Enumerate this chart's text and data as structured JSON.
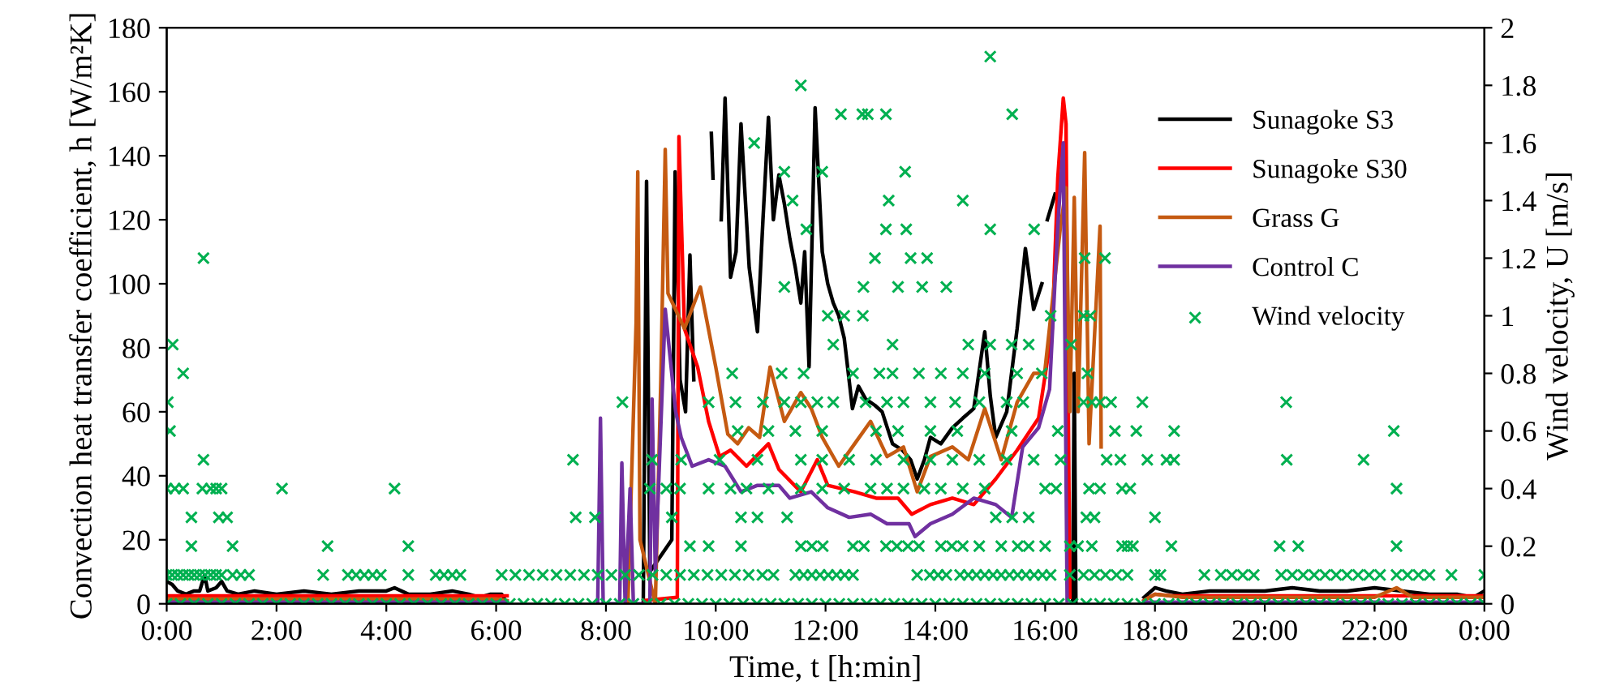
{
  "chart_data": {
    "type": "line",
    "xlabel": "Time, t [h:min]",
    "ylabel": "Convection heat transfer coefficient, h [W/m²K]",
    "y2label": "Wind velocity, U [m/s]",
    "xlim": [
      0,
      24
    ],
    "xticks": [
      {
        "value": 0,
        "label": "0:00"
      },
      {
        "value": 2,
        "label": "2:00"
      },
      {
        "value": 4,
        "label": "4:00"
      },
      {
        "value": 6,
        "label": "6:00"
      },
      {
        "value": 8,
        "label": "8:00"
      },
      {
        "value": 10,
        "label": "10:00"
      },
      {
        "value": 12,
        "label": "12:00"
      },
      {
        "value": 14,
        "label": "14:00"
      },
      {
        "value": 16,
        "label": "16:00"
      },
      {
        "value": 18,
        "label": "18:00"
      },
      {
        "value": 20,
        "label": "20:00"
      },
      {
        "value": 22,
        "label": "22:00"
      },
      {
        "value": 24,
        "label": "0:00"
      }
    ],
    "ylim": [
      0,
      180
    ],
    "yticks": [
      0,
      20,
      40,
      60,
      80,
      100,
      120,
      140,
      160,
      180
    ],
    "y2lim": [
      0,
      2
    ],
    "y2ticks": [
      0,
      0.2,
      0.4,
      0.6,
      0.8,
      1,
      1.2,
      1.4,
      1.6,
      1.8,
      2
    ],
    "legend": "top right",
    "series": [
      {
        "name": "Sunagoke S3",
        "color": "#000000",
        "x": [
          0,
          0.1,
          0.2,
          0.35,
          0.5,
          0.6,
          0.69,
          0.75,
          0.9,
          1.0,
          1.1,
          1.3,
          1.6,
          2.0,
          2.5,
          3.0,
          3.5,
          4.0,
          4.15,
          4.4,
          4.8,
          5.2,
          5.5,
          5.7,
          5.9,
          6.1,
          6.17,
          6.3,
          8.68,
          8.74,
          8.8,
          9.2,
          9.26,
          9.35,
          9.45,
          9.53,
          9.6,
          9.75,
          9.92,
          9.95,
          10.0,
          10.1,
          10.17,
          10.27,
          10.37,
          10.46,
          10.61,
          10.76,
          10.86,
          10.96,
          11.05,
          11.15,
          11.25,
          11.35,
          11.45,
          11.55,
          11.62,
          11.7,
          11.81,
          11.94,
          12.04,
          12.14,
          12.24,
          12.34,
          12.49,
          12.6,
          12.73,
          12.9,
          13.03,
          13.22,
          13.4,
          13.55,
          13.67,
          13.8,
          13.91,
          14.1,
          14.31,
          14.5,
          14.7,
          14.9,
          15.0,
          15.1,
          15.3,
          15.49,
          15.64,
          15.79,
          15.94,
          15.99,
          16.04,
          16.18,
          16.3,
          16.5,
          16.53,
          16.56,
          16.6,
          17.8,
          18.0,
          18.2,
          18.5,
          19.0,
          19.5,
          20.0,
          20.5,
          21.0,
          21.5,
          22.0,
          22.5,
          23.0,
          23.5,
          23.8,
          24
        ],
        "values": [
          7,
          6,
          4,
          3,
          4,
          4,
          9,
          4,
          5,
          7,
          4,
          3,
          4,
          3,
          4,
          3,
          4,
          4,
          5,
          3,
          3,
          4,
          3,
          2,
          3,
          3,
          1,
          null,
          0,
          132,
          10,
          20,
          135,
          70,
          60,
          109,
          70,
          null,
          147,
          133,
          null,
          120,
          158,
          102,
          110,
          150,
          105,
          85,
          120,
          152,
          120,
          134,
          125,
          114,
          105,
          94,
          110,
          74,
          155,
          110,
          100,
          94,
          90,
          83,
          61,
          68,
          64,
          62,
          60,
          50,
          48,
          45,
          39,
          45,
          52,
          50,
          55,
          58,
          61,
          85,
          65,
          52,
          60,
          86,
          111,
          92,
          100,
          null,
          120,
          128,
          null,
          0,
          72,
          0,
          null,
          2,
          5,
          4,
          3,
          4,
          4,
          4,
          5,
          4,
          4,
          5,
          4,
          3,
          3,
          2,
          4
        ]
      },
      {
        "name": "Sunagoke S30",
        "color": "#ff0000",
        "x": [
          0,
          1,
          3,
          6,
          6.2,
          6.3,
          8.7,
          9.3,
          9.33,
          9.43,
          9.55,
          9.67,
          9.87,
          10.07,
          10.27,
          10.56,
          10.96,
          11.15,
          11.55,
          11.85,
          12.04,
          12.53,
          12.92,
          13.32,
          13.57,
          13.91,
          14.31,
          14.7,
          15.1,
          15.49,
          15.88,
          16.13,
          16.23,
          16.33,
          16.38,
          16.45,
          16.5,
          17.8,
          18.0,
          18.3,
          19,
          24
        ],
        "values": [
          2.5,
          2.5,
          2.5,
          2.5,
          2.5,
          null,
          1,
          2,
          146,
          86,
          80,
          74,
          57,
          46,
          48,
          43,
          50,
          42,
          35,
          45,
          37,
          35,
          33,
          33,
          28,
          31,
          33,
          31,
          39,
          48,
          58,
          86,
          133,
          158,
          150,
          2,
          null,
          1,
          3,
          2.5,
          2.5,
          2.5
        ]
      },
      {
        "name": "Grass G",
        "color": "#c55a11",
        "x": [
          0,
          2,
          4,
          6,
          6.2,
          6.3,
          8.4,
          8.55,
          8.58,
          8.62,
          8.9,
          9.0,
          9.08,
          9.13,
          9.43,
          9.72,
          10.0,
          10.22,
          10.4,
          10.6,
          10.8,
          10.99,
          11.25,
          11.55,
          11.74,
          11.94,
          12.24,
          12.53,
          12.82,
          13.12,
          13.42,
          13.67,
          13.91,
          14.31,
          14.6,
          14.9,
          15.2,
          15.49,
          15.79,
          15.99,
          16.28,
          16.38,
          16.45,
          16.53,
          16.6,
          16.72,
          16.8,
          17.0,
          17.02,
          17.1,
          17.8,
          18.0,
          18.5,
          19,
          20,
          21,
          22,
          22.4,
          22.7,
          23,
          24
        ],
        "values": [
          1.5,
          1.5,
          1.5,
          1.5,
          1,
          null,
          0,
          88,
          135,
          20,
          0,
          70,
          142,
          97,
          86,
          99,
          74,
          53,
          50,
          55,
          52,
          74,
          57,
          66,
          61,
          52,
          43,
          50,
          57,
          46,
          49,
          35,
          46,
          49,
          45,
          61,
          45,
          63,
          72,
          72,
          118,
          130,
          60,
          127,
          60,
          141,
          50,
          118,
          49,
          null,
          1,
          3,
          2,
          2,
          2,
          2,
          2,
          5,
          2,
          2,
          2
        ]
      },
      {
        "name": "Control C",
        "color": "#7030a0",
        "x": [
          0,
          3,
          6.2,
          6.3,
          7.85,
          7.9,
          7.95,
          8.25,
          8.29,
          8.35,
          8.44,
          8.5,
          8.8,
          8.84,
          8.9,
          9.08,
          9.27,
          9.37,
          9.57,
          9.87,
          10.17,
          10.46,
          10.76,
          11.15,
          11.35,
          11.74,
          12.04,
          12.43,
          12.82,
          13.12,
          13.52,
          13.63,
          13.91,
          14.31,
          14.7,
          15.1,
          15.39,
          15.59,
          15.88,
          16.08,
          16.23,
          16.33,
          16.4,
          16.5,
          17.8,
          24
        ],
        "values": [
          0.5,
          0.5,
          0.5,
          null,
          0,
          58,
          0,
          0,
          44,
          0,
          36,
          0,
          0,
          64,
          10,
          92,
          60,
          52,
          43,
          45,
          43,
          35,
          37,
          37,
          33,
          35,
          30,
          27,
          28,
          25,
          25,
          21,
          25,
          28,
          33,
          31,
          27,
          49,
          55,
          67,
          118,
          144,
          1,
          null,
          0.5,
          0.5
        ]
      },
      {
        "name": "Wind velocity",
        "color": "#00b050",
        "type": "scatter",
        "marker": "cross",
        "axis": "y2",
        "x": [
          0,
          0.25,
          0.5,
          0.75,
          1,
          1.25,
          1.5,
          1.75,
          2,
          2.25,
          2.5,
          2.75,
          3,
          3.25,
          3.5,
          3.75,
          4,
          4.25,
          4.5,
          4.75,
          5,
          5.25,
          5.5,
          5.75,
          6,
          6.25,
          6.5,
          6.75,
          7,
          7.25,
          7.5,
          7.75,
          8,
          8.25,
          8.5,
          8.75,
          9,
          9.25,
          9.5,
          9.75,
          10,
          10.25,
          10.5,
          10.75,
          11,
          11.25,
          11.5,
          11.75,
          12,
          12.25,
          12.5,
          12.75,
          13,
          13.25,
          13.5,
          13.75,
          14,
          14.25,
          14.5,
          14.75,
          15,
          15.25,
          15.5,
          15.75,
          16,
          16.25,
          16.5,
          16.75,
          17,
          17.25,
          17.5,
          17.75,
          18,
          18.25,
          18.5,
          18.75,
          19,
          19.25,
          19.5,
          19.75,
          20,
          20.25,
          20.5,
          20.75,
          21,
          21.25,
          21.5,
          21.75,
          22,
          22.25,
          22.5,
          22.75,
          23,
          23.25,
          23.5,
          23.75,
          24,
          0,
          0.1,
          0.2,
          0.3,
          0.4,
          0.5,
          0.6,
          0.7,
          0.8,
          0.9,
          1.0,
          1.2,
          1.35,
          1.5,
          2.85,
          3.3,
          3.45,
          3.6,
          3.75,
          3.9,
          4.4,
          4.9,
          5.05,
          5.2,
          5.35,
          6.1,
          6.35,
          6.6,
          6.85,
          7.1,
          7.35,
          7.6,
          7.85,
          8.1,
          8.35,
          8.6,
          8.85,
          9.1,
          9.35,
          9.6,
          9.85,
          10.1,
          10.35,
          10.6,
          10.85,
          11.05,
          11.45,
          11.6,
          11.75,
          11.9,
          12.05,
          12.2,
          12.35,
          12.5,
          13.67,
          13.9,
          14.05,
          14.2,
          14.45,
          14.6,
          14.75,
          14.9,
          15.05,
          15.2,
          15.35,
          15.5,
          15.65,
          15.8,
          15.95,
          16.1,
          16.45,
          16.7,
          16.9,
          17.1,
          17.3,
          17.5,
          18.0,
          18.1,
          18.9,
          19.2,
          19.4,
          19.6,
          19.8,
          20.3,
          20.5,
          20.7,
          20.9,
          21.1,
          21.3,
          21.5,
          21.7,
          21.9,
          22.1,
          22.4,
          22.6,
          22.8,
          23.0,
          23.4,
          24.0,
          0.45,
          1.2,
          2.93,
          4.4,
          9.53,
          9.87,
          10.46,
          11.55,
          11.75,
          11.95,
          12.5,
          12.7,
          13.1,
          13.3,
          13.5,
          13.7,
          14.1,
          14.3,
          14.5,
          14.8,
          15.2,
          15.5,
          15.7,
          16.0,
          16.45,
          16.6,
          16.85,
          17.4,
          17.5,
          17.6,
          18.3,
          20.27,
          20.61,
          22.4,
          0.45,
          0.95,
          1.1,
          7.45,
          7.8,
          9.2,
          10.46,
          10.76,
          11.3,
          15.1,
          15.4,
          15.7,
          16.75,
          16.9,
          18.0,
          0.0,
          0.15,
          0.3,
          0.65,
          0.8,
          0.9,
          1.0,
          2.1,
          4.15,
          8.8,
          9.1,
          9.35,
          9.87,
          10.27,
          10.56,
          10.96,
          11.55,
          11.94,
          12.34,
          12.82,
          13.12,
          13.42,
          13.8,
          14.1,
          14.5,
          14.9,
          16.0,
          16.2,
          16.8,
          17.0,
          17.4,
          17.55,
          22.4,
          0.67,
          7.4,
          8.84,
          9.37,
          10.07,
          10.76,
          11.55,
          11.94,
          12.43,
          12.92,
          13.42,
          13.91,
          14.31,
          14.8,
          15.3,
          15.79,
          16.28,
          17.12,
          17.37,
          17.86,
          18.21,
          18.35,
          20.4,
          21.8,
          0.06,
          10.4,
          10.96,
          11.45,
          11.94,
          12.92,
          13.32,
          13.91,
          14.4,
          15.39,
          16.23,
          17.27,
          17.66,
          18.35,
          22.35,
          0.02,
          8.3,
          9.87,
          10.36,
          10.86,
          11.25,
          11.55,
          11.85,
          12.14,
          12.73,
          13.12,
          13.42,
          13.91,
          14.36,
          14.8,
          15.3,
          15.6,
          16.7,
          16.85,
          17.0,
          17.2,
          17.77,
          20.39,
          0.3,
          10.3,
          11.2,
          11.6,
          12.5,
          12.98,
          13.22,
          13.7,
          14.1,
          14.5,
          14.9,
          15.49,
          15.94,
          16.77,
          0.11,
          12.14,
          13.22,
          14.6,
          15.0,
          15.39,
          15.7,
          16.47,
          12.04,
          12.34,
          12.68,
          16.1,
          16.7,
          16.82,
          11.25,
          12.69,
          13.32,
          13.76,
          14.2,
          0.67,
          12.9,
          13.55,
          13.85,
          16.72,
          17.09,
          11.65,
          13.1,
          13.47,
          15.0,
          15.8,
          11.4,
          13.15,
          14.5,
          11.25,
          11.94,
          13.45,
          10.7,
          12.28,
          12.67,
          12.77,
          13.1,
          15.4,
          11.55,
          15.0
        ],
        "values": [
          0,
          0,
          0,
          0,
          0,
          0,
          0,
          0,
          0,
          0,
          0,
          0,
          0,
          0,
          0,
          0,
          0,
          0,
          0,
          0,
          0,
          0,
          0,
          0,
          0,
          0,
          0,
          0,
          0,
          0,
          0,
          0,
          0,
          0,
          0,
          0,
          0,
          0,
          0,
          0,
          0,
          0,
          0,
          0,
          0,
          0,
          0,
          0,
          0,
          0,
          0,
          0,
          0,
          0,
          0,
          0,
          0,
          0,
          0,
          0,
          0,
          0,
          0,
          0,
          0,
          0,
          0,
          0,
          0,
          0,
          0,
          0,
          0,
          0,
          0,
          0,
          0,
          0,
          0,
          0,
          0,
          0,
          0,
          0,
          0,
          0,
          0,
          0,
          0,
          0,
          0,
          0,
          0,
          0,
          0,
          0,
          0,
          0.1,
          0.1,
          0.1,
          0.1,
          0.1,
          0.1,
          0.1,
          0.1,
          0.1,
          0.1,
          0.1,
          0.1,
          0.1,
          0.1,
          0.1,
          0.1,
          0.1,
          0.1,
          0.1,
          0.1,
          0.1,
          0.1,
          0.1,
          0.1,
          0.1,
          0.1,
          0.1,
          0.1,
          0.1,
          0.1,
          0.1,
          0.1,
          0.1,
          0.1,
          0.1,
          0.1,
          0.1,
          0.1,
          0.1,
          0.1,
          0.1,
          0.1,
          0.1,
          0.1,
          0.1,
          0.1,
          0.1,
          0.1,
          0.1,
          0.1,
          0.1,
          0.1,
          0.1,
          0.1,
          0.1,
          0.1,
          0.1,
          0.1,
          0.1,
          0.1,
          0.1,
          0.1,
          0.1,
          0.1,
          0.1,
          0.1,
          0.1,
          0.1,
          0.1,
          0.1,
          0.1,
          0.1,
          0.1,
          0.1,
          0.1,
          0.1,
          0.1,
          0.1,
          0.1,
          0.1,
          0.1,
          0.1,
          0.1,
          0.1,
          0.1,
          0.1,
          0.1,
          0.1,
          0.1,
          0.1,
          0.1,
          0.1,
          0.1,
          0.1,
          0.1,
          0.1,
          0.1,
          0.1,
          0.1,
          0.2,
          0.2,
          0.2,
          0.2,
          0.2,
          0.2,
          0.2,
          0.2,
          0.2,
          0.2,
          0.2,
          0.2,
          0.2,
          0.2,
          0.2,
          0.2,
          0.2,
          0.2,
          0.2,
          0.2,
          0.2,
          0.2,
          0.2,
          0.2,
          0.2,
          0.2,
          0.2,
          0.2,
          0.2,
          0.2,
          0.2,
          0.2,
          0.2,
          0.2,
          0.3,
          0.3,
          0.3,
          0.3,
          0.3,
          0.3,
          0.3,
          0.3,
          0.3,
          0.3,
          0.3,
          0.3,
          0.3,
          0.3,
          0.3,
          0.4,
          0.4,
          0.4,
          0.4,
          0.4,
          0.4,
          0.4,
          0.4,
          0.4,
          0.4,
          0.4,
          0.4,
          0.4,
          0.4,
          0.4,
          0.4,
          0.4,
          0.4,
          0.4,
          0.4,
          0.4,
          0.4,
          0.4,
          0.4,
          0.4,
          0.4,
          0.4,
          0.4,
          0.4,
          0.4,
          0.4,
          0.4,
          0.4,
          0.5,
          0.5,
          0.5,
          0.5,
          0.5,
          0.5,
          0.5,
          0.5,
          0.5,
          0.5,
          0.5,
          0.5,
          0.5,
          0.5,
          0.5,
          0.5,
          0.5,
          0.5,
          0.5,
          0.5,
          0.5,
          0.5,
          0.5,
          0.5,
          0.6,
          0.6,
          0.6,
          0.6,
          0.6,
          0.6,
          0.6,
          0.6,
          0.6,
          0.6,
          0.6,
          0.6,
          0.6,
          0.6,
          0.6,
          0.7,
          0.7,
          0.7,
          0.7,
          0.7,
          0.7,
          0.7,
          0.7,
          0.7,
          0.7,
          0.7,
          0.7,
          0.7,
          0.7,
          0.7,
          0.7,
          0.7,
          0.7,
          0.7,
          0.7,
          0.7,
          0.7,
          0.7,
          0.8,
          0.8,
          0.8,
          0.8,
          0.8,
          0.8,
          0.8,
          0.8,
          0.8,
          0.8,
          0.8,
          0.8,
          0.8,
          0.8,
          0.9,
          0.9,
          0.9,
          0.9,
          0.9,
          0.9,
          0.9,
          0.9,
          1.0,
          1.0,
          1.0,
          1.0,
          1.0,
          1.0,
          1.1,
          1.1,
          1.1,
          1.1,
          1.1,
          1.2,
          1.2,
          1.2,
          1.2,
          1.2,
          1.2,
          1.3,
          1.3,
          1.3,
          1.3,
          1.3,
          1.4,
          1.4,
          1.4,
          1.5,
          1.5,
          1.5,
          1.6,
          1.7,
          1.7,
          1.7,
          1.7,
          1.7,
          1.8,
          1.9
        ]
      }
    ]
  }
}
